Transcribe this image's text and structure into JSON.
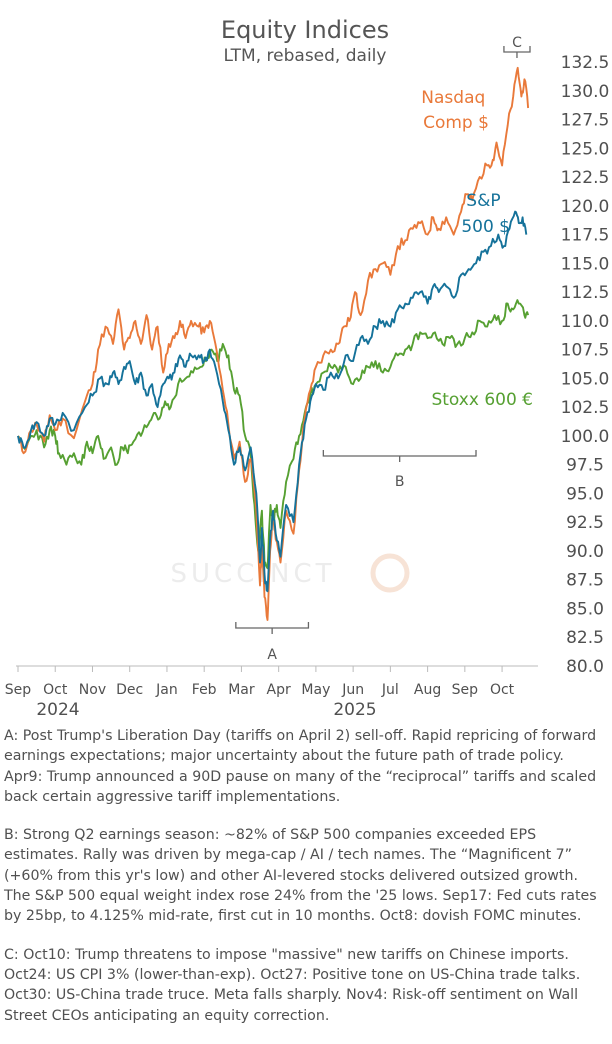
{
  "chart_data": {
    "type": "line",
    "title": "Equity Indices",
    "subtitle": "LTM, rebased, daily",
    "ylim": [
      80,
      132.5
    ],
    "yticks": [
      "80.0",
      "82.5",
      "85.0",
      "87.5",
      "90.0",
      "92.5",
      "95.0",
      "97.5",
      "100.0",
      "102.5",
      "105.0",
      "107.5",
      "110.0",
      "112.5",
      "115.0",
      "117.5",
      "120.0",
      "122.5",
      "125.0",
      "127.5",
      "130.0",
      "132.5"
    ],
    "months": [
      "Sep",
      "Oct",
      "Nov",
      "Dec",
      "Jan",
      "Feb",
      "Mar",
      "Apr",
      "May",
      "Jun",
      "Jul",
      "Aug",
      "Sep",
      "Oct"
    ],
    "years": [
      "2024",
      "2025"
    ],
    "x_unit": "months since start of Sep 2024",
    "series": [
      {
        "name": "Nasdaq Comp $",
        "label_lines": [
          "Nasdaq",
          "Comp $"
        ],
        "color": "#e9793a",
        "points": [
          [
            0,
            100
          ],
          [
            0.15,
            98.5
          ],
          [
            0.35,
            100.5
          ],
          [
            0.5,
            101
          ],
          [
            0.7,
            99.5
          ],
          [
            0.85,
            101.8
          ],
          [
            1,
            100.5
          ],
          [
            1.2,
            101.5
          ],
          [
            1.5,
            99.8
          ],
          [
            1.8,
            103
          ],
          [
            2,
            104.5
          ],
          [
            2.15,
            107.5
          ],
          [
            2.35,
            109.5
          ],
          [
            2.55,
            108
          ],
          [
            2.7,
            111
          ],
          [
            2.85,
            107.5
          ],
          [
            3,
            108.5
          ],
          [
            3.15,
            110
          ],
          [
            3.3,
            108
          ],
          [
            3.45,
            110.5
          ],
          [
            3.6,
            107.5
          ],
          [
            3.75,
            109.5
          ],
          [
            3.9,
            105.5
          ],
          [
            4.05,
            108
          ],
          [
            4.2,
            108.5
          ],
          [
            4.35,
            110
          ],
          [
            4.5,
            108.5
          ],
          [
            4.65,
            110
          ],
          [
            4.85,
            109.5
          ],
          [
            5,
            109
          ],
          [
            5.15,
            110
          ],
          [
            5.3,
            108
          ],
          [
            5.5,
            104
          ],
          [
            5.65,
            101
          ],
          [
            5.8,
            98
          ],
          [
            5.95,
            99.5
          ],
          [
            6.1,
            96
          ],
          [
            6.25,
            98
          ],
          [
            6.4,
            93.5
          ],
          [
            6.5,
            87
          ],
          [
            6.55,
            91
          ],
          [
            6.62,
            86
          ],
          [
            6.7,
            84
          ],
          [
            6.77,
            90
          ],
          [
            6.85,
            93.5
          ],
          [
            6.92,
            91
          ],
          [
            7.05,
            89
          ],
          [
            7.2,
            93.5
          ],
          [
            7.4,
            91.5
          ],
          [
            7.55,
            97
          ],
          [
            7.7,
            101.5
          ],
          [
            7.85,
            104
          ],
          [
            8,
            106
          ],
          [
            8.2,
            107
          ],
          [
            8.4,
            107.5
          ],
          [
            8.6,
            108
          ],
          [
            8.75,
            109.5
          ],
          [
            8.9,
            110
          ],
          [
            9.05,
            112.5
          ],
          [
            9.2,
            110.5
          ],
          [
            9.4,
            113.5
          ],
          [
            9.6,
            114.5
          ],
          [
            9.8,
            115
          ],
          [
            10,
            114
          ],
          [
            10.2,
            116.5
          ],
          [
            10.4,
            117
          ],
          [
            10.6,
            118
          ],
          [
            10.8,
            118.5
          ],
          [
            11,
            117.5
          ],
          [
            11.15,
            119
          ],
          [
            11.3,
            118
          ],
          [
            11.5,
            119
          ],
          [
            11.7,
            117.5
          ],
          [
            11.9,
            119.5
          ],
          [
            12.05,
            121
          ],
          [
            12.2,
            120.5
          ],
          [
            12.4,
            122.5
          ],
          [
            12.6,
            123.5
          ],
          [
            12.75,
            124
          ],
          [
            12.85,
            125.5
          ],
          [
            13,
            123.5
          ],
          [
            13.15,
            127
          ],
          [
            13.3,
            129.5
          ],
          [
            13.42,
            132
          ],
          [
            13.52,
            129.5
          ],
          [
            13.6,
            131
          ],
          [
            13.7,
            128.5
          ]
        ]
      },
      {
        "name": "S&P 500 $",
        "label_lines": [
          "S&P",
          "500 $"
        ],
        "color": "#15729a",
        "points": [
          [
            0,
            100
          ],
          [
            0.15,
            99
          ],
          [
            0.35,
            100.5
          ],
          [
            0.5,
            101.2
          ],
          [
            0.7,
            100
          ],
          [
            0.85,
            101.5
          ],
          [
            1,
            101
          ],
          [
            1.2,
            102
          ],
          [
            1.5,
            100.5
          ],
          [
            1.8,
            102.5
          ],
          [
            2,
            103.5
          ],
          [
            2.2,
            105
          ],
          [
            2.4,
            104.5
          ],
          [
            2.55,
            105.5
          ],
          [
            2.7,
            104.5
          ],
          [
            2.85,
            106
          ],
          [
            3,
            106.5
          ],
          [
            3.15,
            104.5
          ],
          [
            3.3,
            105.5
          ],
          [
            3.45,
            103.5
          ],
          [
            3.6,
            104.5
          ],
          [
            3.75,
            102.5
          ],
          [
            3.9,
            104.5
          ],
          [
            4.05,
            105
          ],
          [
            4.2,
            105.5
          ],
          [
            4.35,
            107
          ],
          [
            4.5,
            106
          ],
          [
            4.65,
            107
          ],
          [
            4.85,
            107
          ],
          [
            5,
            106.5
          ],
          [
            5.15,
            107.5
          ],
          [
            5.3,
            106
          ],
          [
            5.5,
            103
          ],
          [
            5.65,
            100.5
          ],
          [
            5.8,
            97.5
          ],
          [
            5.95,
            99
          ],
          [
            6.1,
            97
          ],
          [
            6.25,
            99
          ],
          [
            6.4,
            95
          ],
          [
            6.5,
            89
          ],
          [
            6.55,
            92
          ],
          [
            6.62,
            88
          ],
          [
            6.7,
            86.5
          ],
          [
            6.77,
            91
          ],
          [
            6.85,
            93.5
          ],
          [
            6.92,
            91.5
          ],
          [
            7.05,
            89.5
          ],
          [
            7.2,
            94
          ],
          [
            7.4,
            92.5
          ],
          [
            7.55,
            97.5
          ],
          [
            7.7,
            101
          ],
          [
            7.85,
            103
          ],
          [
            8,
            104.5
          ],
          [
            8.2,
            104
          ],
          [
            8.4,
            105.5
          ],
          [
            8.6,
            105
          ],
          [
            8.8,
            107
          ],
          [
            9,
            106.5
          ],
          [
            9.2,
            108.5
          ],
          [
            9.4,
            108
          ],
          [
            9.6,
            109.5
          ],
          [
            9.8,
            110
          ],
          [
            10,
            109.5
          ],
          [
            10.2,
            111
          ],
          [
            10.4,
            111.5
          ],
          [
            10.6,
            112
          ],
          [
            10.8,
            112.5
          ],
          [
            11,
            111.5
          ],
          [
            11.15,
            113
          ],
          [
            11.3,
            112.5
          ],
          [
            11.5,
            113
          ],
          [
            11.7,
            112
          ],
          [
            11.9,
            114
          ],
          [
            12.1,
            114.5
          ],
          [
            12.3,
            115
          ],
          [
            12.5,
            116
          ],
          [
            12.7,
            116.5
          ],
          [
            12.9,
            117.5
          ],
          [
            13.05,
            116.5
          ],
          [
            13.2,
            118
          ],
          [
            13.35,
            119.5
          ],
          [
            13.45,
            118.5
          ],
          [
            13.55,
            119
          ],
          [
            13.65,
            117.5
          ]
        ]
      },
      {
        "name": "Stoxx 600 €",
        "label_lines": [
          "Stoxx 600 €"
        ],
        "color": "#56a032",
        "points": [
          [
            0,
            100
          ],
          [
            0.15,
            99
          ],
          [
            0.35,
            100
          ],
          [
            0.5,
            100.5
          ],
          [
            0.7,
            99
          ],
          [
            0.85,
            100.5
          ],
          [
            1,
            100
          ],
          [
            1.1,
            98.5
          ],
          [
            1.3,
            97.5
          ],
          [
            1.5,
            98.5
          ],
          [
            1.7,
            97.5
          ],
          [
            1.85,
            99.5
          ],
          [
            2,
            98.5
          ],
          [
            2.15,
            100
          ],
          [
            2.3,
            98
          ],
          [
            2.5,
            99
          ],
          [
            2.65,
            97.5
          ],
          [
            2.8,
            99
          ],
          [
            2.95,
            98.5
          ],
          [
            3.1,
            99.5
          ],
          [
            3.3,
            100
          ],
          [
            3.5,
            101
          ],
          [
            3.65,
            102
          ],
          [
            3.8,
            101.5
          ],
          [
            3.95,
            103
          ],
          [
            4.1,
            102.5
          ],
          [
            4.3,
            104.5
          ],
          [
            4.5,
            105
          ],
          [
            4.7,
            105.5
          ],
          [
            4.9,
            106
          ],
          [
            5.05,
            106.5
          ],
          [
            5.2,
            107.5
          ],
          [
            5.35,
            106.5
          ],
          [
            5.5,
            108
          ],
          [
            5.65,
            107
          ],
          [
            5.8,
            104
          ],
          [
            5.95,
            103.5
          ],
          [
            6.1,
            100
          ],
          [
            6.25,
            98.5
          ],
          [
            6.35,
            94
          ],
          [
            6.45,
            90
          ],
          [
            6.55,
            93.5
          ],
          [
            6.62,
            89
          ],
          [
            6.7,
            88.5
          ],
          [
            6.78,
            94
          ],
          [
            6.85,
            92.5
          ],
          [
            6.95,
            94
          ],
          [
            7.05,
            92
          ],
          [
            7.2,
            96
          ],
          [
            7.4,
            98
          ],
          [
            7.55,
            100
          ],
          [
            7.7,
            102
          ],
          [
            7.85,
            103.5
          ],
          [
            8,
            104.5
          ],
          [
            8.2,
            105.5
          ],
          [
            8.4,
            106
          ],
          [
            8.6,
            105.5
          ],
          [
            8.8,
            106
          ],
          [
            9,
            104.5
          ],
          [
            9.2,
            105
          ],
          [
            9.4,
            106
          ],
          [
            9.6,
            106.5
          ],
          [
            9.8,
            105.5
          ],
          [
            10,
            106
          ],
          [
            10.2,
            107
          ],
          [
            10.4,
            107.5
          ],
          [
            10.6,
            108
          ],
          [
            10.8,
            109
          ],
          [
            11,
            108.5
          ],
          [
            11.2,
            109
          ],
          [
            11.4,
            108
          ],
          [
            11.6,
            108.5
          ],
          [
            11.8,
            108
          ],
          [
            12,
            108.5
          ],
          [
            12.2,
            109
          ],
          [
            12.4,
            110
          ],
          [
            12.6,
            109.5
          ],
          [
            12.8,
            110.5
          ],
          [
            13,
            110
          ],
          [
            13.15,
            111.5
          ],
          [
            13.3,
            111
          ],
          [
            13.45,
            111.5
          ],
          [
            13.6,
            110.5
          ],
          [
            13.7,
            110.5
          ]
        ]
      }
    ],
    "annotations": [
      {
        "letter": "A",
        "x_start": 5.85,
        "x_end": 7.8
      },
      {
        "letter": "B",
        "x_start": 8.2,
        "x_end": 12.3
      },
      {
        "letter": "C",
        "x_start": 13.05,
        "x_end": 13.75
      }
    ],
    "watermark": "SUCCINCT"
  },
  "notes": {
    "a": "A: Post Trump's Liberation Day (tariffs on April 2) sell-off. Rapid repricing of forward earnings expectations; major uncertainty about the future path of trade policy. Apr9: Trump announced a 90D pause on many of the “reciprocal” tariffs and scaled back certain aggressive tariff implementations.",
    "b": "B: Strong Q2 earnings season: ~82% of S&P 500 companies exceeded EPS estimates. Rally was driven by mega-cap / AI / tech names. The “Magnificent 7” (+60% from this yr's low) and other AI-levered stocks delivered outsized growth. The S&P 500 equal weight index rose 24% from the '25 lows. Sep17: Fed cuts rates by 25bp, to 4.125% mid-rate, first cut in 10 months. Oct8: dovish FOMC minutes.",
    "c": "C: Oct10: Trump threatens to impose \"massive\" new tariffs on Chinese imports. Oct24: US CPI 3% (lower-than-exp). Oct27: Positive tone on US-China trade talks. Oct30: US-China trade truce. Meta falls sharply. Nov4: Risk-off sentiment on Wall Street CEOs anticipating an equity correction."
  }
}
